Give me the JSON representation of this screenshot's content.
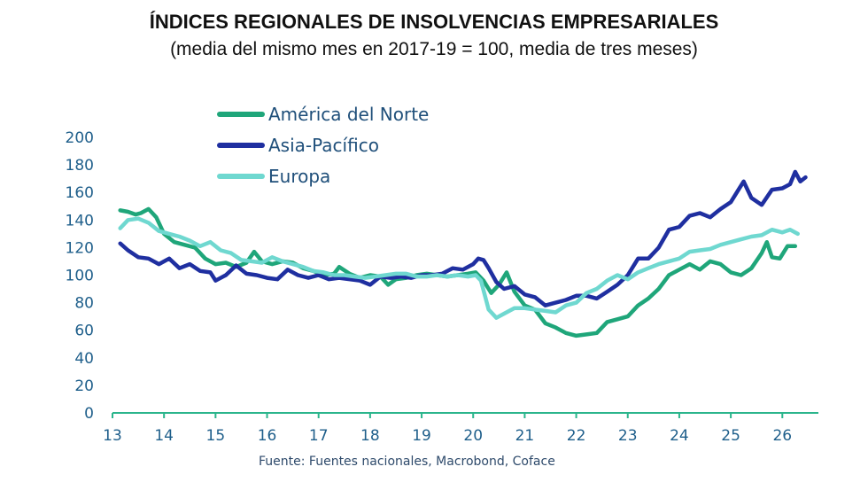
{
  "header": {
    "title": "ÍNDICES REGIONALES DE INSOLVENCIAS EMPRESARIALES",
    "subtitle": "(media del mismo mes en 2017-19 = 100, media de tres meses)"
  },
  "footer": {
    "source": "Fuente: Fuentes nacionales, Macrobond, Coface"
  },
  "colors": {
    "axis": "#2bb58c",
    "tick_text": "#1f5f8b"
  },
  "chart_data": {
    "type": "line",
    "title": "ÍNDICES REGIONALES DE INSOLVENCIAS EMPRESARIALES",
    "subtitle": "(media del mismo mes en 2017-19 = 100, media de tres meses)",
    "xlabel": "",
    "ylabel": "",
    "xlim": [
      13,
      26.7
    ],
    "ylim": [
      0,
      200
    ],
    "xticks": [
      13,
      14,
      15,
      16,
      17,
      18,
      19,
      20,
      21,
      22,
      23,
      24,
      25,
      26
    ],
    "xtick_labels": [
      "13",
      "14",
      "15",
      "16",
      "17",
      "18",
      "19",
      "20",
      "21",
      "22",
      "23",
      "24",
      "25",
      "26"
    ],
    "yticks": [
      0,
      20,
      40,
      60,
      80,
      100,
      120,
      140,
      160,
      180,
      200
    ],
    "ytick_labels": [
      "0",
      "20",
      "40",
      "60",
      "80",
      "100",
      "120",
      "140",
      "160",
      "180",
      "200"
    ],
    "grid": false,
    "legend_position": "top-left",
    "series": [
      {
        "name": "América del Norte",
        "color": "#1fa67a",
        "points": [
          [
            13.15,
            147
          ],
          [
            13.3,
            146
          ],
          [
            13.45,
            144
          ],
          [
            13.55,
            145
          ],
          [
            13.7,
            148
          ],
          [
            13.85,
            142
          ],
          [
            14.0,
            130
          ],
          [
            14.2,
            124
          ],
          [
            14.4,
            122
          ],
          [
            14.6,
            120
          ],
          [
            14.8,
            112
          ],
          [
            15.0,
            108
          ],
          [
            15.2,
            109
          ],
          [
            15.4,
            106
          ],
          [
            15.6,
            109
          ],
          [
            15.75,
            117
          ],
          [
            15.9,
            110
          ],
          [
            16.1,
            108
          ],
          [
            16.3,
            110
          ],
          [
            16.5,
            109
          ],
          [
            16.7,
            105
          ],
          [
            16.9,
            103
          ],
          [
            17.1,
            100
          ],
          [
            17.3,
            101
          ],
          [
            17.4,
            106
          ],
          [
            17.6,
            101
          ],
          [
            17.8,
            98
          ],
          [
            18.0,
            100
          ],
          [
            18.2,
            99
          ],
          [
            18.35,
            93
          ],
          [
            18.5,
            97
          ],
          [
            18.7,
            98
          ],
          [
            18.9,
            100
          ],
          [
            19.1,
            101
          ],
          [
            19.3,
            100
          ],
          [
            19.5,
            99
          ],
          [
            19.7,
            100
          ],
          [
            19.9,
            101
          ],
          [
            20.05,
            102
          ],
          [
            20.2,
            96
          ],
          [
            20.35,
            87
          ],
          [
            20.5,
            93
          ],
          [
            20.65,
            102
          ],
          [
            20.8,
            88
          ],
          [
            21.0,
            78
          ],
          [
            21.2,
            75
          ],
          [
            21.4,
            65
          ],
          [
            21.6,
            62
          ],
          [
            21.8,
            58
          ],
          [
            22.0,
            56
          ],
          [
            22.2,
            57
          ],
          [
            22.4,
            58
          ],
          [
            22.6,
            66
          ],
          [
            22.8,
            68
          ],
          [
            23.0,
            70
          ],
          [
            23.2,
            78
          ],
          [
            23.4,
            83
          ],
          [
            23.6,
            90
          ],
          [
            23.8,
            100
          ],
          [
            24.0,
            104
          ],
          [
            24.2,
            108
          ],
          [
            24.4,
            104
          ],
          [
            24.6,
            110
          ],
          [
            24.8,
            108
          ],
          [
            25.0,
            102
          ],
          [
            25.2,
            100
          ],
          [
            25.4,
            105
          ],
          [
            25.6,
            116
          ],
          [
            25.7,
            124
          ],
          [
            25.8,
            113
          ],
          [
            25.95,
            112
          ],
          [
            26.1,
            121
          ],
          [
            26.25,
            121
          ]
        ]
      },
      {
        "name": "Asia-Pacífico",
        "color": "#1f2fa0",
        "points": [
          [
            13.15,
            123
          ],
          [
            13.3,
            118
          ],
          [
            13.5,
            113
          ],
          [
            13.7,
            112
          ],
          [
            13.9,
            108
          ],
          [
            14.1,
            112
          ],
          [
            14.3,
            105
          ],
          [
            14.5,
            108
          ],
          [
            14.7,
            103
          ],
          [
            14.9,
            102
          ],
          [
            15.0,
            96
          ],
          [
            15.2,
            100
          ],
          [
            15.4,
            107
          ],
          [
            15.6,
            101
          ],
          [
            15.8,
            100
          ],
          [
            16.0,
            98
          ],
          [
            16.2,
            97
          ],
          [
            16.4,
            104
          ],
          [
            16.6,
            100
          ],
          [
            16.8,
            98
          ],
          [
            17.0,
            100
          ],
          [
            17.2,
            97
          ],
          [
            17.4,
            98
          ],
          [
            17.6,
            97
          ],
          [
            17.8,
            96
          ],
          [
            18.0,
            93
          ],
          [
            18.2,
            99
          ],
          [
            18.4,
            98
          ],
          [
            18.6,
            99
          ],
          [
            18.8,
            98
          ],
          [
            19.0,
            100
          ],
          [
            19.2,
            100
          ],
          [
            19.4,
            101
          ],
          [
            19.6,
            105
          ],
          [
            19.8,
            104
          ],
          [
            20.0,
            108
          ],
          [
            20.1,
            112
          ],
          [
            20.2,
            111
          ],
          [
            20.3,
            105
          ],
          [
            20.45,
            95
          ],
          [
            20.6,
            90
          ],
          [
            20.8,
            92
          ],
          [
            21.0,
            86
          ],
          [
            21.2,
            84
          ],
          [
            21.4,
            78
          ],
          [
            21.6,
            80
          ],
          [
            21.8,
            82
          ],
          [
            22.0,
            85
          ],
          [
            22.2,
            85
          ],
          [
            22.4,
            83
          ],
          [
            22.6,
            88
          ],
          [
            22.8,
            93
          ],
          [
            23.0,
            100
          ],
          [
            23.2,
            112
          ],
          [
            23.4,
            112
          ],
          [
            23.6,
            120
          ],
          [
            23.8,
            133
          ],
          [
            24.0,
            135
          ],
          [
            24.2,
            143
          ],
          [
            24.4,
            145
          ],
          [
            24.6,
            142
          ],
          [
            24.8,
            148
          ],
          [
            25.0,
            153
          ],
          [
            25.15,
            162
          ],
          [
            25.25,
            168
          ],
          [
            25.4,
            156
          ],
          [
            25.6,
            151
          ],
          [
            25.8,
            162
          ],
          [
            26.0,
            163
          ],
          [
            26.15,
            166
          ],
          [
            26.25,
            175
          ],
          [
            26.35,
            168
          ],
          [
            26.45,
            171
          ]
        ]
      },
      {
        "name": "Europa",
        "color": "#6fd8d0",
        "points": [
          [
            13.15,
            134
          ],
          [
            13.3,
            140
          ],
          [
            13.5,
            141
          ],
          [
            13.7,
            138
          ],
          [
            13.9,
            132
          ],
          [
            14.1,
            130
          ],
          [
            14.3,
            128
          ],
          [
            14.5,
            125
          ],
          [
            14.7,
            121
          ],
          [
            14.9,
            124
          ],
          [
            15.1,
            118
          ],
          [
            15.3,
            116
          ],
          [
            15.5,
            111
          ],
          [
            15.7,
            110
          ],
          [
            15.9,
            109
          ],
          [
            16.1,
            113
          ],
          [
            16.3,
            110
          ],
          [
            16.5,
            108
          ],
          [
            16.7,
            106
          ],
          [
            16.9,
            103
          ],
          [
            17.1,
            102
          ],
          [
            17.3,
            100
          ],
          [
            17.5,
            100
          ],
          [
            17.7,
            99
          ],
          [
            17.9,
            98
          ],
          [
            18.1,
            99
          ],
          [
            18.3,
            100
          ],
          [
            18.5,
            101
          ],
          [
            18.7,
            101
          ],
          [
            18.9,
            99
          ],
          [
            19.1,
            99
          ],
          [
            19.3,
            100
          ],
          [
            19.5,
            99
          ],
          [
            19.7,
            100
          ],
          [
            19.9,
            99
          ],
          [
            20.05,
            100
          ],
          [
            20.15,
            96
          ],
          [
            20.3,
            75
          ],
          [
            20.45,
            69
          ],
          [
            20.6,
            72
          ],
          [
            20.8,
            76
          ],
          [
            21.0,
            76
          ],
          [
            21.2,
            75
          ],
          [
            21.4,
            74
          ],
          [
            21.6,
            73
          ],
          [
            21.8,
            78
          ],
          [
            22.0,
            80
          ],
          [
            22.2,
            87
          ],
          [
            22.4,
            90
          ],
          [
            22.6,
            96
          ],
          [
            22.8,
            100
          ],
          [
            23.0,
            97
          ],
          [
            23.2,
            102
          ],
          [
            23.4,
            105
          ],
          [
            23.6,
            108
          ],
          [
            23.8,
            110
          ],
          [
            24.0,
            112
          ],
          [
            24.2,
            117
          ],
          [
            24.4,
            118
          ],
          [
            24.6,
            119
          ],
          [
            24.8,
            122
          ],
          [
            25.0,
            124
          ],
          [
            25.2,
            126
          ],
          [
            25.4,
            128
          ],
          [
            25.6,
            129
          ],
          [
            25.8,
            133
          ],
          [
            26.0,
            131
          ],
          [
            26.15,
            133
          ],
          [
            26.3,
            130
          ]
        ]
      }
    ]
  }
}
